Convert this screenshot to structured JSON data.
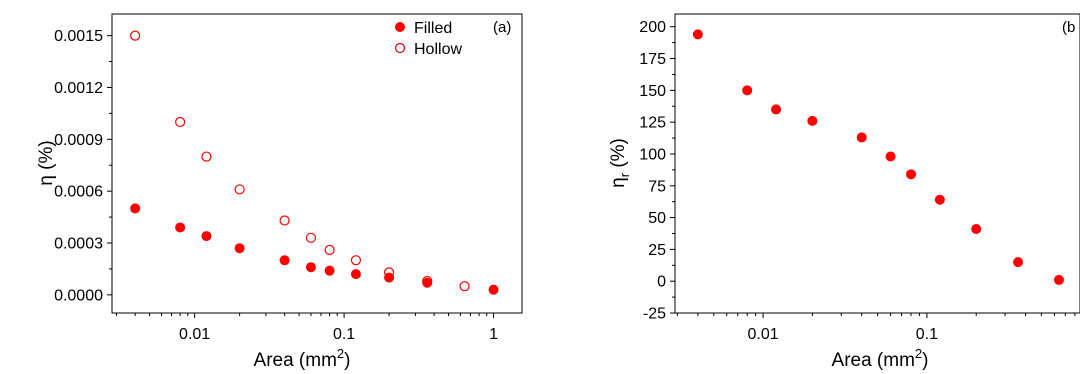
{
  "chart_data": [
    {
      "type": "scatter",
      "panel_label": "(a)",
      "xlabel": "Area (mm",
      "xlabel_sup": "2",
      "xlabel_close": ")",
      "ylabel": "η (%)",
      "xscale": "log",
      "xlim": [
        0.0028,
        1.55
      ],
      "ylim": [
        -0.000105,
        0.001625
      ],
      "xticks": [
        0.01,
        0.1,
        1
      ],
      "xtick_labels": [
        "0.01",
        "0.1",
        "1"
      ],
      "yticks": [
        0,
        0.0003,
        0.0006,
        0.0009,
        0.0012,
        0.0015
      ],
      "ytick_labels": [
        "0.0000",
        "0.0003",
        "0.0006",
        "0.0009",
        "0.0012",
        "0.0015"
      ],
      "legend_position": "top-right",
      "grid": false,
      "series": [
        {
          "name": "Filled",
          "marker": "filled",
          "color": "#ff0000",
          "x": [
            0.004,
            0.008,
            0.012,
            0.02,
            0.04,
            0.06,
            0.08,
            0.12,
            0.2,
            0.36,
            1.0
          ],
          "y": [
            0.0005,
            0.00039,
            0.00034,
            0.00027,
            0.0002,
            0.00016,
            0.00014,
            0.00012,
            0.0001,
            7e-05,
            3e-05
          ]
        },
        {
          "name": "Hollow",
          "marker": "hollow",
          "color": "#ff0000",
          "x": [
            0.004,
            0.008,
            0.012,
            0.02,
            0.04,
            0.06,
            0.08,
            0.12,
            0.2,
            0.36,
            0.64
          ],
          "y": [
            0.0015,
            0.001,
            0.0008,
            0.00061,
            0.00043,
            0.00033,
            0.00026,
            0.0002,
            0.00013,
            8e-05,
            5e-05
          ]
        }
      ]
    },
    {
      "type": "scatter",
      "panel_label": "(b",
      "xlabel": "Area (mm",
      "xlabel_sup": "2",
      "xlabel_close": ")",
      "ylabel": "η",
      "ylabel_sub": "r",
      "ylabel_tail": " (%)",
      "xscale": "log",
      "xlim": [
        0.0029,
        0.86
      ],
      "ylim": [
        -25,
        210
      ],
      "xticks": [
        0.01,
        0.1
      ],
      "xtick_labels": [
        "0.01",
        "0.1"
      ],
      "yticks": [
        -25,
        0,
        25,
        50,
        75,
        100,
        125,
        150,
        175,
        200
      ],
      "ytick_labels": [
        "-25",
        "0",
        "25",
        "50",
        "75",
        "100",
        "125",
        "150",
        "175",
        "200"
      ],
      "grid": false,
      "series": [
        {
          "marker": "filled",
          "color": "#ff0000",
          "x": [
            0.004,
            0.008,
            0.012,
            0.02,
            0.04,
            0.06,
            0.08,
            0.12,
            0.2,
            0.36,
            0.64
          ],
          "y": [
            194,
            150,
            135,
            126,
            113,
            98,
            84,
            64,
            41,
            15,
            1
          ]
        }
      ]
    }
  ]
}
